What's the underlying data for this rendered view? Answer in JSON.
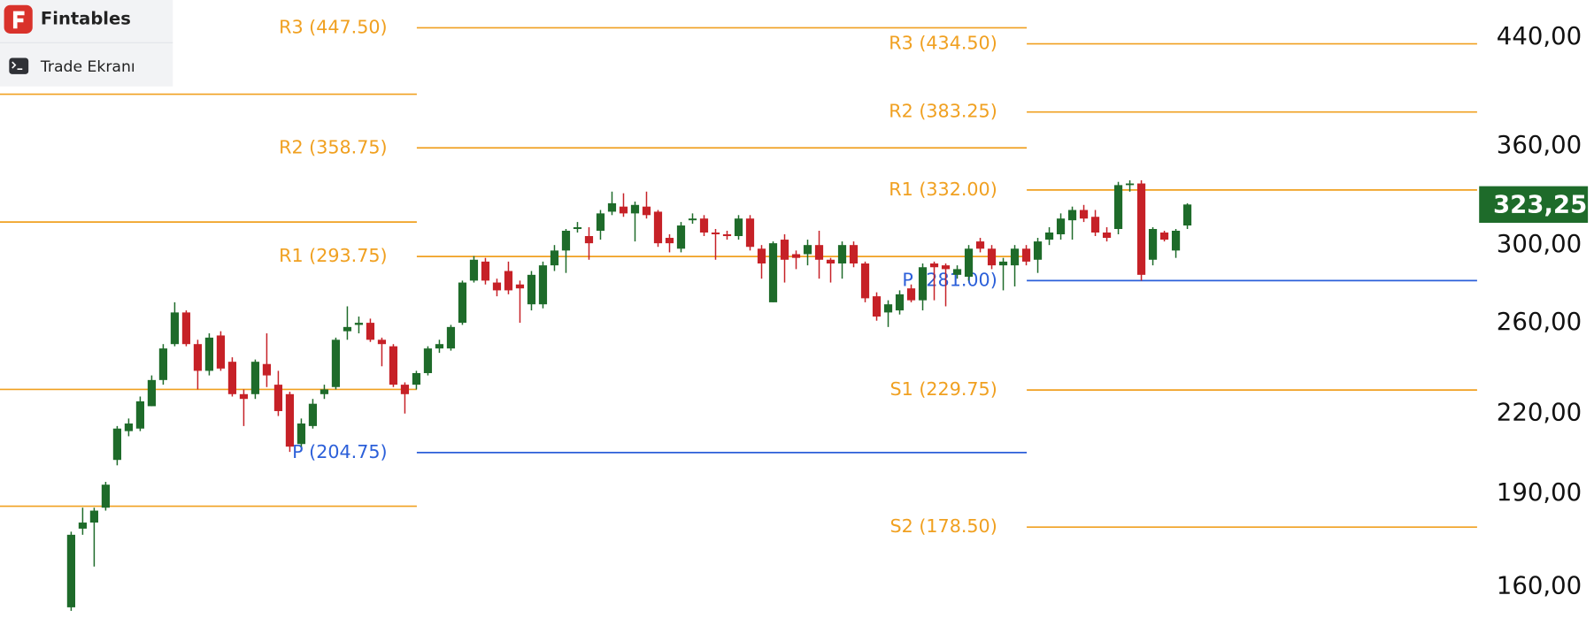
{
  "app": {
    "brand": "Fintables",
    "button": "Trade Ekranı"
  },
  "chart_data": {
    "type": "candlestick",
    "log_scale": true,
    "ylim": [
      151,
      471
    ],
    "yticks": [
      {
        "value": 160,
        "label": "160,00"
      },
      {
        "value": 190,
        "label": "190,00"
      },
      {
        "value": 220,
        "label": "220,00"
      },
      {
        "value": 260,
        "label": "260,00"
      },
      {
        "value": 300,
        "label": "300,00"
      },
      {
        "value": 360,
        "label": "360,00"
      },
      {
        "value": 440,
        "label": "440,00"
      }
    ],
    "up_color": "#1e6b2a",
    "down_color": "#c62127",
    "open": [
      154,
      178,
      180,
      185,
      202,
      213,
      214,
      223,
      234,
      250,
      265,
      250,
      238,
      254,
      242,
      228,
      228,
      241,
      232,
      228,
      208,
      215,
      228,
      231,
      256,
      259,
      260,
      252,
      249,
      232,
      232,
      237,
      248,
      248,
      260,
      281,
      291,
      280,
      286,
      279,
      269,
      269,
      289,
      297,
      309,
      305,
      308,
      319,
      322,
      318,
      322,
      319,
      304,
      298,
      314,
      315,
      307,
      306,
      305,
      315,
      298,
      270,
      303,
      295,
      295,
      300,
      292,
      290,
      300,
      290,
      273,
      265,
      266,
      277,
      271,
      290,
      289,
      284,
      283,
      302,
      298,
      289,
      289,
      298,
      292,
      303,
      306,
      314,
      320,
      316,
      307,
      309,
      335,
      336,
      292,
      307,
      297,
      311
    ],
    "high": [
      177,
      185,
      185,
      194,
      215,
      218,
      227,
      236,
      250,
      270,
      266,
      252,
      255,
      256,
      244,
      230,
      243,
      255,
      238,
      229,
      218,
      226,
      232,
      253,
      268,
      263,
      262,
      253,
      250,
      233,
      238,
      249,
      252,
      259,
      281,
      294,
      293,
      282,
      291,
      281,
      286,
      291,
      300,
      309,
      313,
      310,
      320,
      331,
      330,
      325,
      331,
      320,
      306,
      313,
      318,
      317,
      309,
      308,
      317,
      317,
      300,
      302,
      306,
      297,
      303,
      308,
      293,
      302,
      302,
      291,
      275,
      271,
      276,
      279,
      290,
      291,
      290,
      289,
      300,
      304,
      300,
      293,
      300,
      300,
      304,
      310,
      318,
      322,
      323,
      320,
      310,
      337,
      338,
      338,
      310,
      308,
      309,
      324
    ],
    "low": [
      153,
      176,
      166,
      184,
      200,
      211,
      213,
      223,
      232,
      249,
      249,
      230,
      236,
      238,
      227,
      215,
      226,
      231,
      219,
      205,
      207,
      214,
      226,
      230,
      252,
      255,
      251,
      240,
      231,
      220,
      230,
      236,
      246,
      247,
      259,
      280,
      279,
      273,
      274,
      260,
      266,
      267,
      286,
      285,
      307,
      292,
      303,
      317,
      316,
      302,
      315,
      299,
      296,
      296,
      312,
      305,
      292,
      303,
      303,
      297,
      282,
      270,
      280,
      287,
      289,
      282,
      280,
      282,
      288,
      270,
      261,
      258,
      264,
      270,
      266,
      271,
      268,
      282,
      281,
      296,
      287,
      276,
      278,
      289,
      285,
      300,
      303,
      303,
      313,
      305,
      302,
      306,
      331,
      281,
      289,
      302,
      293,
      309
    ],
    "close": [
      176,
      180,
      184,
      193,
      214,
      216,
      225,
      234,
      248,
      265,
      250,
      238,
      253,
      239,
      228,
      226,
      242,
      236,
      221,
      207,
      216,
      224,
      230,
      252,
      258,
      260,
      252,
      250,
      232,
      228,
      237,
      248,
      250,
      258,
      280,
      292,
      281,
      276,
      276,
      277,
      284,
      289,
      297,
      308,
      310,
      301,
      318,
      324,
      318,
      323,
      317,
      301,
      301,
      311,
      315,
      307,
      306,
      305,
      315,
      299,
      290,
      301,
      292,
      293,
      300,
      292,
      290,
      300,
      290,
      272,
      263,
      269,
      274,
      271,
      288,
      288,
      287,
      287,
      298,
      298,
      289,
      291,
      298,
      291,
      302,
      307,
      315,
      320,
      315,
      307,
      304,
      335,
      336,
      284,
      309,
      303,
      308,
      323.25
    ],
    "pivot_levels": [
      {
        "values": [
          396,
          313,
          230,
          185.5
        ],
        "labels": [
          null,
          null,
          null,
          null
        ],
        "colors": [
          "#f0a020",
          "#f0a020",
          "#f0a020",
          "#f0a020"
        ]
      },
      {
        "values": [
          447.5,
          358.75,
          293.75,
          204.75
        ],
        "labels": [
          "R3 (447.50)",
          "R2 (358.75)",
          "R1 (293.75)",
          "P (204.75)"
        ],
        "colors": [
          "#f0a020",
          "#f0a020",
          "#f0a020",
          "#2b5fd9"
        ]
      },
      {
        "values": [
          434.5,
          383.25,
          332,
          281,
          229.75,
          178.5
        ],
        "labels": [
          "R3 (434.50)",
          "R2 (383.25)",
          "R1 (332.00)",
          "P (281.00)",
          "S1 (229.75)",
          "S2 (178.50)"
        ],
        "colors": [
          "#f0a020",
          "#f0a020",
          "#f0a020",
          "#2b5fd9",
          "#f0a020",
          "#f0a020"
        ]
      }
    ],
    "last_price": {
      "value": 323.25,
      "label": "323,25",
      "color": "#1e6b2a"
    }
  }
}
